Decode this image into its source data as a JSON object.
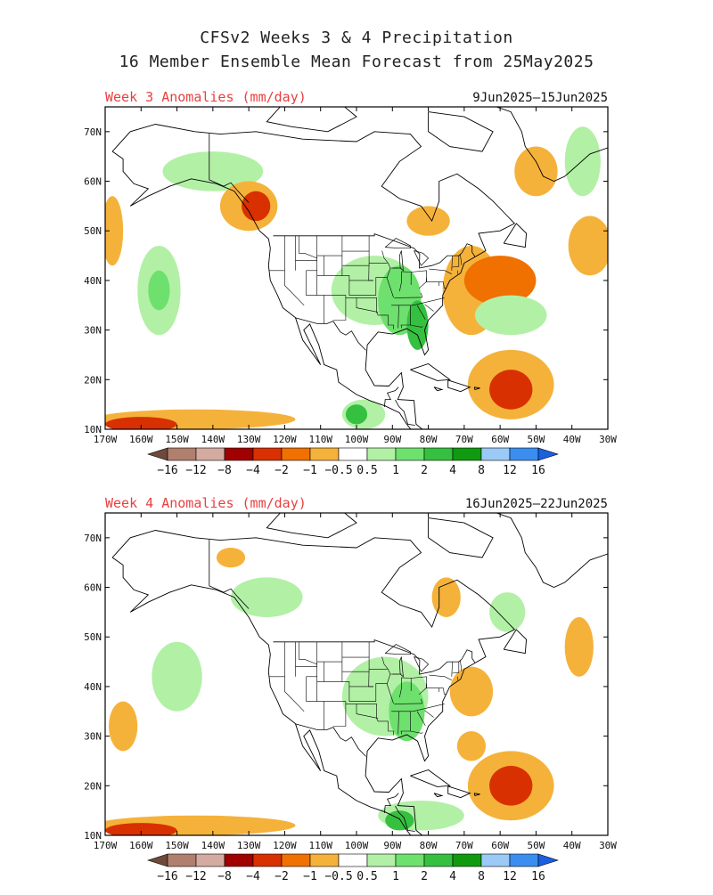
{
  "header": {
    "title_line1": "CFSv2 Weeks 3 & 4 Precipitation",
    "title_line2": "16 Member Ensemble Mean Forecast from 25May2025"
  },
  "panels": [
    {
      "title": "Week 3 Anomalies (mm/day)",
      "date_range": "9Jun2025–15Jun2025",
      "blobs": [
        {
          "class": "wet1",
          "lon": -95,
          "lat": 38,
          "rx": 12,
          "ry": 7
        },
        {
          "class": "wet2",
          "lon": -88,
          "lat": 36,
          "rx": 6,
          "ry": 7
        },
        {
          "class": "wet3",
          "lon": -83,
          "lat": 31,
          "rx": 3,
          "ry": 5
        },
        {
          "class": "wet1",
          "lon": -155,
          "lat": 38,
          "rx": 6,
          "ry": 9
        },
        {
          "class": "wet2",
          "lon": -155,
          "lat": 38,
          "rx": 3,
          "ry": 4
        },
        {
          "class": "wet1",
          "lon": -140,
          "lat": 62,
          "rx": 14,
          "ry": 4
        },
        {
          "class": "wet1",
          "lon": -57,
          "lat": 33,
          "rx": 10,
          "ry": 4
        },
        {
          "class": "wet1",
          "lon": -98,
          "lat": 13,
          "rx": 6,
          "ry": 3
        },
        {
          "class": "wet3",
          "lon": -100,
          "lat": 13,
          "rx": 3,
          "ry": 2
        },
        {
          "class": "wet1",
          "lon": -37,
          "lat": 64,
          "rx": 5,
          "ry": 7
        },
        {
          "class": "dry1",
          "lon": -130,
          "lat": 55,
          "rx": 8,
          "ry": 5
        },
        {
          "class": "dry3",
          "lon": -128,
          "lat": 55,
          "rx": 4,
          "ry": 3
        },
        {
          "class": "dry1",
          "lon": -68,
          "lat": 38,
          "rx": 8,
          "ry": 9
        },
        {
          "class": "dry2",
          "lon": -60,
          "lat": 40,
          "rx": 10,
          "ry": 5
        },
        {
          "class": "dry1",
          "lon": -57,
          "lat": 19,
          "rx": 12,
          "ry": 7
        },
        {
          "class": "dry3",
          "lon": -57,
          "lat": 18,
          "rx": 6,
          "ry": 4
        },
        {
          "class": "dry1",
          "lon": -145,
          "lat": 12,
          "rx": 28,
          "ry": 2
        },
        {
          "class": "dry3",
          "lon": -160,
          "lat": 11,
          "rx": 10,
          "ry": 1.5
        },
        {
          "class": "dry1",
          "lon": -35,
          "lat": 47,
          "rx": 6,
          "ry": 6
        },
        {
          "class": "dry1",
          "lon": -50,
          "lat": 62,
          "rx": 6,
          "ry": 5
        },
        {
          "class": "dry1",
          "lon": -168,
          "lat": 50,
          "rx": 3,
          "ry": 7
        },
        {
          "class": "dry1",
          "lon": -80,
          "lat": 52,
          "rx": 6,
          "ry": 3
        }
      ]
    },
    {
      "title": "Week 4 Anomalies (mm/day)",
      "date_range": "16Jun2025–22Jun2025",
      "blobs": [
        {
          "class": "wet1",
          "lon": -92,
          "lat": 38,
          "rx": 12,
          "ry": 8
        },
        {
          "class": "wet2",
          "lon": -86,
          "lat": 35,
          "rx": 5,
          "ry": 6
        },
        {
          "class": "wet1",
          "lon": -150,
          "lat": 42,
          "rx": 7,
          "ry": 7
        },
        {
          "class": "wet1",
          "lon": -125,
          "lat": 58,
          "rx": 10,
          "ry": 4
        },
        {
          "class": "wet1",
          "lon": -82,
          "lat": 14,
          "rx": 12,
          "ry": 3
        },
        {
          "class": "wet3",
          "lon": -88,
          "lat": 13,
          "rx": 4,
          "ry": 2
        },
        {
          "class": "wet1",
          "lon": -58,
          "lat": 55,
          "rx": 5,
          "ry": 4
        },
        {
          "class": "dry1",
          "lon": -57,
          "lat": 20,
          "rx": 12,
          "ry": 7
        },
        {
          "class": "dry3",
          "lon": -57,
          "lat": 20,
          "rx": 6,
          "ry": 4
        },
        {
          "class": "dry1",
          "lon": -68,
          "lat": 39,
          "rx": 6,
          "ry": 5
        },
        {
          "class": "dry1",
          "lon": -145,
          "lat": 12,
          "rx": 28,
          "ry": 2
        },
        {
          "class": "dry3",
          "lon": -160,
          "lat": 11,
          "rx": 10,
          "ry": 1.5
        },
        {
          "class": "dry1",
          "lon": -165,
          "lat": 32,
          "rx": 4,
          "ry": 5
        },
        {
          "class": "dry1",
          "lon": -38,
          "lat": 48,
          "rx": 4,
          "ry": 6
        },
        {
          "class": "dry1",
          "lon": -75,
          "lat": 58,
          "rx": 4,
          "ry": 4
        },
        {
          "class": "dry1",
          "lon": -135,
          "lat": 66,
          "rx": 4,
          "ry": 2
        },
        {
          "class": "dry1",
          "lon": -68,
          "lat": 28,
          "rx": 4,
          "ry": 3
        }
      ]
    }
  ],
  "axes": {
    "lon_labels": [
      "170W",
      "160W",
      "150W",
      "140W",
      "130W",
      "120W",
      "110W",
      "100W",
      "90W",
      "80W",
      "70W",
      "60W",
      "50W",
      "40W",
      "30W"
    ],
    "lat_labels": [
      "10N",
      "20N",
      "30N",
      "40N",
      "50N",
      "60N",
      "70N"
    ],
    "lon_range": [
      -170,
      -30
    ],
    "lat_range": [
      10,
      75
    ]
  },
  "colorbar": {
    "labels": [
      "−16",
      "−12",
      "−8",
      "−4",
      "−2",
      "−1",
      "−0.5",
      "0.5",
      "1",
      "2",
      "4",
      "8",
      "12",
      "16"
    ],
    "colors": [
      "#b07f6e",
      "#d3aba0",
      "#a00000",
      "#d83000",
      "#f07000",
      "#f5b23a",
      "#ffffff",
      "#b2f0a6",
      "#6ee06e",
      "#36c040",
      "#109a10",
      "#9ccaf6",
      "#3b8ef0"
    ],
    "low_end_color": "#6d4a3a",
    "high_end_color": "#1a60e0"
  },
  "anomaly_colors": {
    "wet1": "#b2f0a6",
    "wet2": "#6ee06e",
    "wet3": "#36c040",
    "dry1": "#f5b23a",
    "dry2": "#f07000",
    "dry3": "#d83000"
  },
  "coastline_color": "#000000"
}
